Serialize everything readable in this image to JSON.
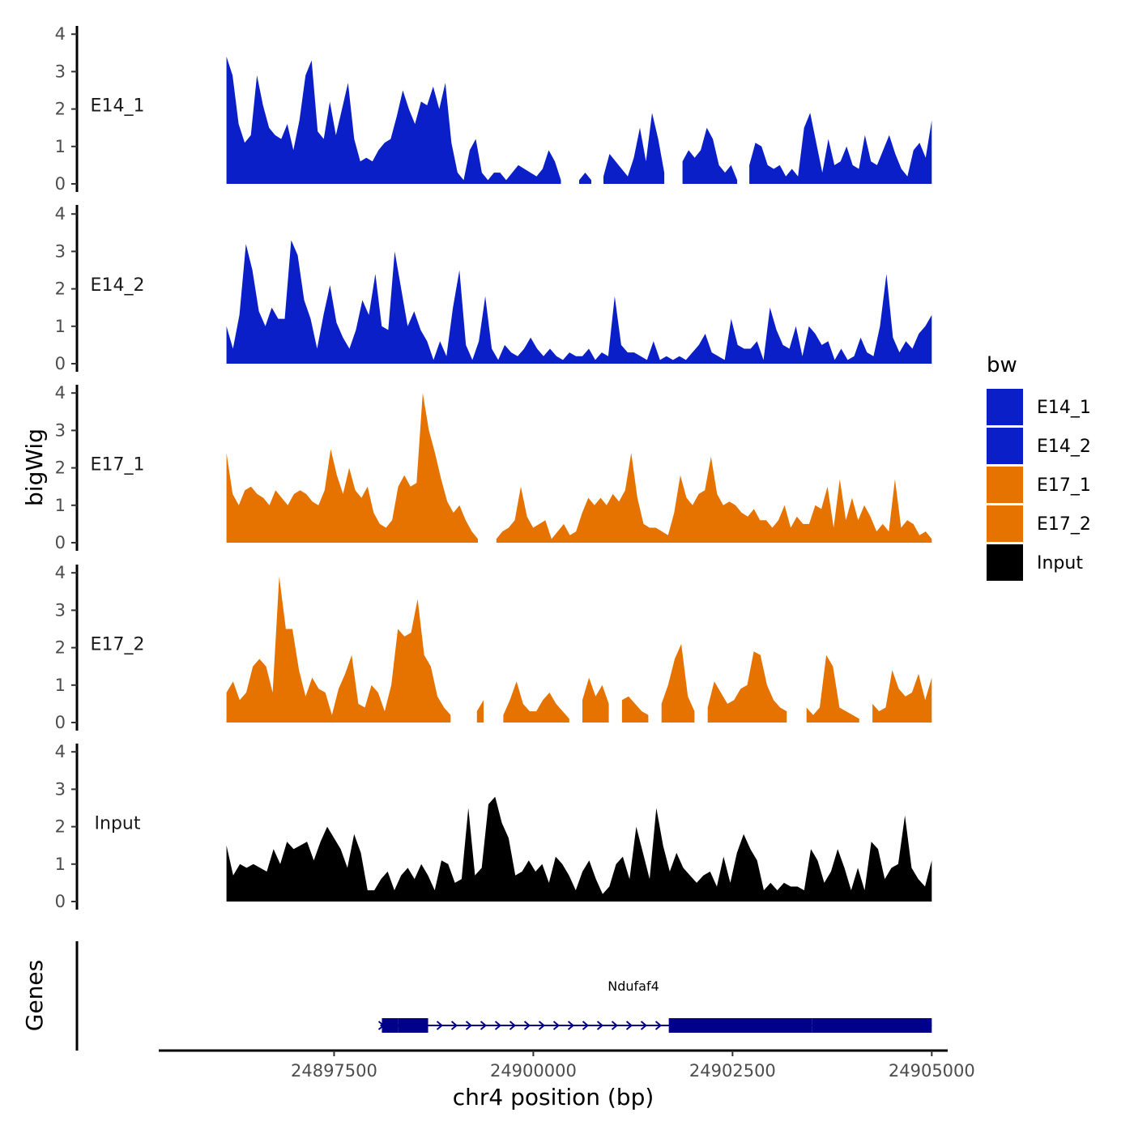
{
  "chart_data": {
    "type": "area",
    "y_axis_title": "bigWig",
    "x_axis_title": "chr4 position (bp)",
    "genes_axis_title": "Genes",
    "legend_title": "bw",
    "legend": [
      "E14_1",
      "E14_2",
      "E17_1",
      "E17_2",
      "Input"
    ],
    "colors": {
      "E14": "#0A1FC8",
      "E17": "#E67300",
      "Input": "#000000",
      "gene": "#00008B"
    },
    "xlim": [
      24895300,
      24905200
    ],
    "ylim": [
      0,
      4.2
    ],
    "y_ticks": [
      0,
      1,
      2,
      3,
      4
    ],
    "x_ticks": [
      24897500,
      24900000,
      24902500,
      24905000
    ],
    "x_tick_labels": [
      "24897500",
      "24900000",
      "24902500",
      "24905000"
    ],
    "x_start": 24896150,
    "x_end": 24905000,
    "series": [
      {
        "name": "E14_1",
        "group": "E14",
        "values": [
          3.4,
          2.9,
          1.6,
          1.1,
          1.3,
          2.9,
          2.1,
          1.5,
          1.3,
          1.2,
          1.6,
          0.9,
          1.7,
          2.9,
          3.3,
          1.4,
          1.2,
          2.2,
          1.3,
          2.0,
          2.7,
          1.2,
          0.6,
          0.7,
          0.6,
          0.9,
          1.1,
          1.2,
          1.8,
          2.5,
          2.0,
          1.6,
          2.2,
          2.1,
          2.6,
          2.0,
          2.7,
          1.1,
          0.3,
          0.1,
          0.9,
          1.2,
          0.3,
          0.1,
          0.3,
          0.3,
          0.1,
          0.3,
          0.5,
          0.4,
          0.3,
          0.2,
          0.4,
          0.9,
          0.6,
          0.1,
          null,
          null,
          0.1,
          0.3,
          0.1,
          null,
          0.2,
          0.8,
          0.6,
          0.4,
          0.2,
          0.7,
          1.5,
          0.6,
          1.9,
          1.2,
          0.3,
          null,
          null,
          0.6,
          0.9,
          0.7,
          0.9,
          1.5,
          1.2,
          0.5,
          0.3,
          0.5,
          0.1,
          null,
          0.5,
          1.1,
          1.0,
          0.5,
          0.4,
          0.5,
          0.2,
          0.4,
          0.2,
          1.5,
          1.9,
          1.1,
          0.3,
          1.2,
          0.5,
          0.6,
          1.0,
          0.5,
          0.4,
          1.3,
          0.6,
          0.5,
          0.9,
          1.3,
          0.8,
          0.4,
          0.2,
          0.9,
          1.1,
          0.7,
          1.7
        ]
      },
      {
        "name": "E14_2",
        "group": "E14",
        "values": [
          1.0,
          0.4,
          1.3,
          3.2,
          2.5,
          1.4,
          1.0,
          1.5,
          1.2,
          1.2,
          3.3,
          2.9,
          1.7,
          1.2,
          0.4,
          1.3,
          2.1,
          1.1,
          0.7,
          0.4,
          0.9,
          1.7,
          1.3,
          2.4,
          1.0,
          0.9,
          3.0,
          2.0,
          1.0,
          1.4,
          0.9,
          0.6,
          0.1,
          0.6,
          0.2,
          1.5,
          2.5,
          0.5,
          0.1,
          0.6,
          1.8,
          0.4,
          0.1,
          0.5,
          0.3,
          0.2,
          0.4,
          0.7,
          0.4,
          0.2,
          0.4,
          0.2,
          0.1,
          0.3,
          0.2,
          0.2,
          0.4,
          0.1,
          0.3,
          0.2,
          1.8,
          0.5,
          0.3,
          0.3,
          0.2,
          0.1,
          0.6,
          0.1,
          0.2,
          0.1,
          0.2,
          0.1,
          0.3,
          0.5,
          0.8,
          0.3,
          0.2,
          0.1,
          1.2,
          0.5,
          0.4,
          0.4,
          0.6,
          0.1,
          1.5,
          0.9,
          0.5,
          0.4,
          1.0,
          0.2,
          1.0,
          0.8,
          0.5,
          0.6,
          0.1,
          0.4,
          0.1,
          0.2,
          0.7,
          0.3,
          0.2,
          1.0,
          2.4,
          0.7,
          0.3,
          0.6,
          0.4,
          0.8,
          1.0,
          1.3
        ]
      },
      {
        "name": "E17_1",
        "group": "E17",
        "values": [
          2.4,
          1.3,
          1.0,
          1.4,
          1.5,
          1.3,
          1.2,
          1.0,
          1.4,
          1.2,
          1.0,
          1.3,
          1.4,
          1.3,
          1.1,
          1.0,
          1.4,
          2.5,
          1.8,
          1.3,
          2.0,
          1.4,
          1.2,
          1.5,
          0.8,
          0.5,
          0.4,
          0.6,
          1.5,
          1.8,
          1.5,
          1.6,
          4.0,
          3.0,
          2.4,
          1.7,
          1.1,
          0.8,
          1.0,
          0.6,
          0.3,
          0.1,
          null,
          null,
          0.1,
          0.3,
          0.4,
          0.6,
          1.5,
          0.7,
          0.4,
          0.5,
          0.6,
          0.1,
          0.3,
          0.5,
          0.2,
          0.3,
          0.8,
          1.2,
          1.0,
          1.2,
          1.0,
          1.3,
          1.1,
          1.4,
          2.4,
          1.2,
          0.5,
          0.4,
          0.4,
          0.3,
          0.2,
          0.8,
          1.8,
          1.2,
          1.0,
          1.3,
          1.4,
          2.3,
          1.3,
          1.0,
          1.1,
          1.0,
          0.8,
          0.7,
          0.9,
          0.6,
          0.6,
          0.4,
          0.6,
          1.0,
          0.4,
          0.7,
          0.5,
          0.5,
          1.0,
          0.9,
          1.5,
          0.4,
          1.7,
          0.6,
          1.2,
          0.6,
          1.0,
          0.7,
          0.3,
          0.5,
          0.3,
          1.7,
          0.4,
          0.6,
          0.5,
          0.2,
          0.3,
          0.1
        ]
      },
      {
        "name": "E17_2",
        "group": "E17",
        "values": [
          0.8,
          1.1,
          0.6,
          0.8,
          1.5,
          1.7,
          1.5,
          0.8,
          3.9,
          2.5,
          2.5,
          1.4,
          0.7,
          1.2,
          0.9,
          0.8,
          0.2,
          0.9,
          1.3,
          1.8,
          0.5,
          0.4,
          1.0,
          0.8,
          0.3,
          1.0,
          2.5,
          2.3,
          2.4,
          3.3,
          1.8,
          1.5,
          0.7,
          0.4,
          0.2,
          null,
          null,
          null,
          0.3,
          0.6,
          null,
          null,
          0.2,
          0.6,
          1.1,
          0.5,
          0.3,
          0.3,
          0.6,
          0.8,
          0.5,
          0.3,
          0.1,
          null,
          0.6,
          1.2,
          0.7,
          1.0,
          0.5,
          null,
          0.6,
          0.7,
          0.5,
          0.3,
          0.2,
          null,
          0.5,
          1.0,
          1.7,
          2.1,
          0.7,
          0.3,
          null,
          0.4,
          1.1,
          0.8,
          0.5,
          0.6,
          0.9,
          1.0,
          1.9,
          1.8,
          1.0,
          0.6,
          0.4,
          0.3,
          null,
          null,
          0.4,
          0.2,
          0.4,
          1.8,
          1.5,
          0.4,
          0.3,
          0.2,
          0.1,
          null,
          0.5,
          0.3,
          0.4,
          1.4,
          0.9,
          0.7,
          0.8,
          1.3,
          0.6,
          1.2
        ]
      },
      {
        "name": "Input",
        "group": "Input",
        "values": [
          1.5,
          0.7,
          1.0,
          0.9,
          1.0,
          0.9,
          0.8,
          1.4,
          1.0,
          1.6,
          1.4,
          1.5,
          1.6,
          1.1,
          1.6,
          2.0,
          1.7,
          1.4,
          0.9,
          1.8,
          1.3,
          0.3,
          0.3,
          0.6,
          0.8,
          0.3,
          0.7,
          0.9,
          0.6,
          1.0,
          0.7,
          0.3,
          1.1,
          1.0,
          0.5,
          0.6,
          2.5,
          0.7,
          0.9,
          2.6,
          2.8,
          2.1,
          1.7,
          0.7,
          0.8,
          1.1,
          0.8,
          1.0,
          0.5,
          1.2,
          1.0,
          0.7,
          0.3,
          0.8,
          1.1,
          0.6,
          0.2,
          0.4,
          1.0,
          1.2,
          0.6,
          2.0,
          1.3,
          0.6,
          2.5,
          1.5,
          0.8,
          1.3,
          0.9,
          0.7,
          0.5,
          0.7,
          0.8,
          0.4,
          1.2,
          0.5,
          1.3,
          1.8,
          1.4,
          1.1,
          0.3,
          0.5,
          0.3,
          0.5,
          0.4,
          0.4,
          0.3,
          1.4,
          1.1,
          0.5,
          0.8,
          1.4,
          0.9,
          0.3,
          0.9,
          0.3,
          1.6,
          1.4,
          0.6,
          0.9,
          1.0,
          2.3,
          0.9,
          0.6,
          0.4,
          1.1
        ]
      }
    ],
    "tracks": [
      "E14_1",
      "E14_2",
      "E17_1",
      "E17_2",
      "Input"
    ],
    "gene": {
      "name": "Ndufaf4",
      "start": 24898080,
      "end": 24905000,
      "exons": [
        [
          24898100,
          24898300
        ],
        [
          24898300,
          24898680
        ],
        [
          24901700,
          24903500
        ],
        [
          24903500,
          24905000
        ]
      ],
      "strand": "+"
    }
  }
}
